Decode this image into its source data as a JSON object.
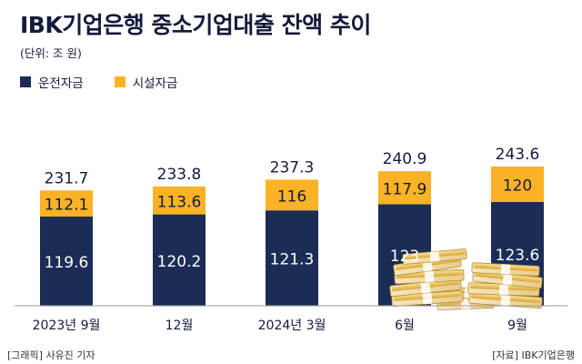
{
  "title": "IBK기업은행 중소기업대출 잔액 추이",
  "unit_label": "(단위: 조 원)",
  "colors": {
    "operating": "#1b2d57",
    "facility": "#fbb225",
    "axis": "#9a9a9a",
    "text_dark": "#141b3a",
    "text_light": "#ffffff"
  },
  "footer": {
    "left": "[그래픽] 사유진 기자",
    "right": "[자료] IBK기업은행"
  },
  "chart_data": {
    "type": "bar",
    "stacked": true,
    "categories": [
      "2023년 9월",
      "12월",
      "2024년 3월",
      "6월",
      "9월"
    ],
    "series": [
      {
        "name": "운전자금",
        "values": [
          119.6,
          120.2,
          121.3,
          123,
          123.6
        ],
        "value_labels": [
          "119.6",
          "120.2",
          "121.3",
          "123",
          "123.6"
        ],
        "color": "#1b2d57"
      },
      {
        "name": "시설자금",
        "values": [
          112.1,
          113.6,
          116,
          117.9,
          120
        ],
        "value_labels": [
          "112.1",
          "113.6",
          "116",
          "117.9",
          "120"
        ],
        "color": "#fbb225"
      }
    ],
    "totals": [
      231.7,
      233.8,
      237.3,
      240.9,
      243.6
    ],
    "total_labels": [
      "231.7",
      "233.8",
      "237.3",
      "240.9",
      "243.6"
    ],
    "legend_position": "top-left",
    "grid": false
  }
}
